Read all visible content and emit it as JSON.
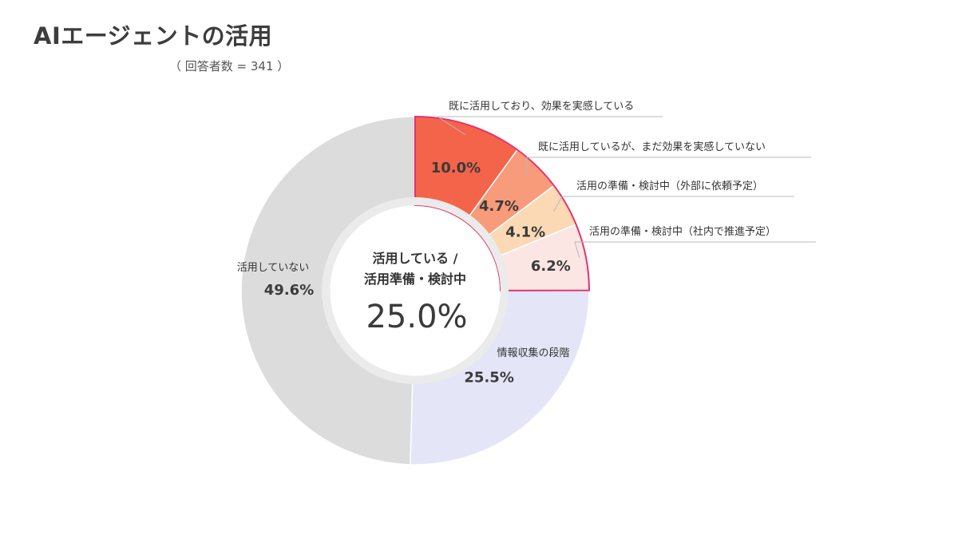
{
  "header": {
    "title": "AIエージェントの活用",
    "subtitle": "（ 回答者数 = 341 ）"
  },
  "center": {
    "label_line1": "活用している /",
    "label_line2": "活用準備・検討中",
    "value": "25.0%"
  },
  "colors": {
    "ring_border": "#e0356b",
    "inner_ring": "#ebebeb"
  },
  "chart_data": {
    "type": "pie",
    "title": "AIエージェントの活用",
    "subtitle": "（ 回答者数 = 341 ）",
    "slices": [
      {
        "label": "既に活用しており、効果を実感している",
        "value": 10.0,
        "display": "10.0%",
        "color": "#f4644a"
      },
      {
        "label": "既に活用しているが、まだ効果を実感していない",
        "value": 4.7,
        "display": "4.7%",
        "color": "#f79b7a"
      },
      {
        "label": "活用の準備・検討中（外部に依頼予定）",
        "value": 4.1,
        "display": "4.1%",
        "color": "#fbd9b5"
      },
      {
        "label": "活用の準備・検討中（社内で推進予定）",
        "value": 6.2,
        "display": "6.2%",
        "color": "#fce6e4"
      },
      {
        "label": "情報収集の段階",
        "value": 25.5,
        "display": "25.5%",
        "color": "#e4e5f7"
      },
      {
        "label": "活用していない",
        "value": 49.6,
        "display": "49.6%",
        "color": "#dcdcdc"
      }
    ]
  }
}
